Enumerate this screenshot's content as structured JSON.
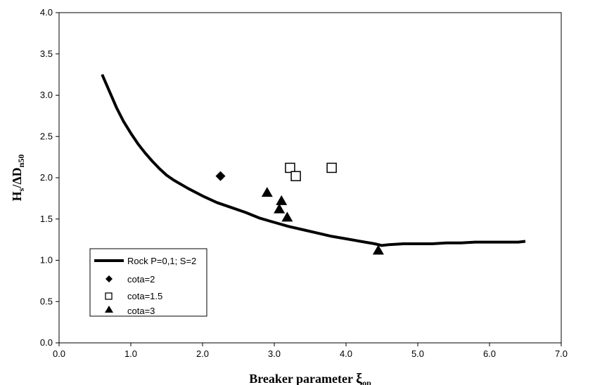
{
  "chart_data": {
    "type": "scatter",
    "xlabel_main": "Breaker parameter ",
    "xlabel_symbol": "ξ",
    "xlabel_sub": "op",
    "ylabel_main": "H",
    "ylabel_sub1": "s",
    "ylabel_mid": "/ΔD",
    "ylabel_sub2": "n50",
    "xlim": [
      0,
      7
    ],
    "ylim": [
      0,
      4
    ],
    "x_ticks": [
      "0.0",
      "1.0",
      "2.0",
      "3.0",
      "4.0",
      "5.0",
      "6.0",
      "7.0"
    ],
    "y_ticks": [
      "0.0",
      "0.5",
      "1.0",
      "1.5",
      "2.0",
      "2.5",
      "3.0",
      "3.5",
      "4.0"
    ],
    "grid": false,
    "legend_position": "bottom-left",
    "series": [
      {
        "name": "Rock P=0,1; S=2",
        "kind": "line",
        "color": "#000000",
        "points": [
          [
            0.6,
            3.25
          ],
          [
            0.7,
            3.05
          ],
          [
            0.8,
            2.85
          ],
          [
            0.9,
            2.68
          ],
          [
            1.0,
            2.54
          ],
          [
            1.1,
            2.41
          ],
          [
            1.2,
            2.3
          ],
          [
            1.3,
            2.2
          ],
          [
            1.4,
            2.11
          ],
          [
            1.5,
            2.03
          ],
          [
            1.6,
            1.97
          ],
          [
            1.8,
            1.87
          ],
          [
            2.0,
            1.78
          ],
          [
            2.2,
            1.7
          ],
          [
            2.4,
            1.64
          ],
          [
            2.6,
            1.58
          ],
          [
            2.8,
            1.51
          ],
          [
            3.0,
            1.46
          ],
          [
            3.2,
            1.41
          ],
          [
            3.4,
            1.37
          ],
          [
            3.6,
            1.33
          ],
          [
            3.8,
            1.29
          ],
          [
            4.0,
            1.26
          ],
          [
            4.2,
            1.23
          ],
          [
            4.4,
            1.2
          ],
          [
            4.5,
            1.18
          ],
          [
            4.6,
            1.19
          ],
          [
            4.8,
            1.2
          ],
          [
            5.0,
            1.2
          ],
          [
            5.2,
            1.2
          ],
          [
            5.4,
            1.21
          ],
          [
            5.6,
            1.21
          ],
          [
            5.8,
            1.22
          ],
          [
            6.0,
            1.22
          ],
          [
            6.2,
            1.22
          ],
          [
            6.4,
            1.22
          ],
          [
            6.5,
            1.23
          ]
        ]
      },
      {
        "name": "cota=2",
        "kind": "diamond",
        "color": "#000000",
        "points": [
          [
            2.25,
            2.02
          ]
        ]
      },
      {
        "name": "cota=1.5",
        "kind": "open-square",
        "color": "#000000",
        "points": [
          [
            3.22,
            2.12
          ],
          [
            3.3,
            2.02
          ],
          [
            3.8,
            2.12
          ]
        ]
      },
      {
        "name": "cota=3",
        "kind": "triangle",
        "color": "#000000",
        "points": [
          [
            2.9,
            1.82
          ],
          [
            3.07,
            1.62
          ],
          [
            3.1,
            1.72
          ],
          [
            3.18,
            1.52
          ],
          [
            4.45,
            1.12
          ]
        ]
      }
    ]
  }
}
